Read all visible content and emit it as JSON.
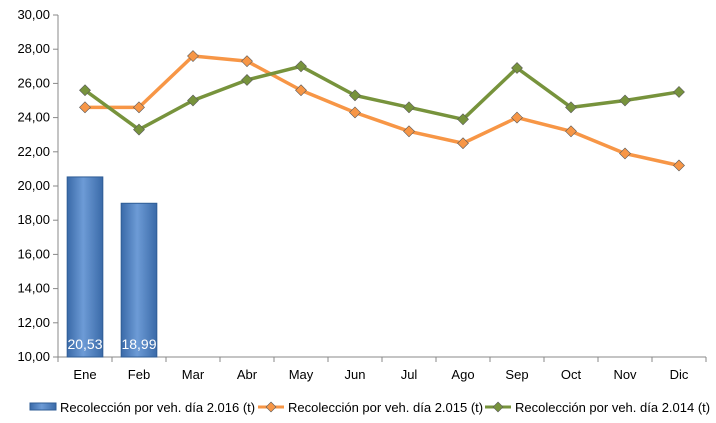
{
  "chart_data": {
    "type": "bar",
    "categories": [
      "Ene",
      "Feb",
      "Mar",
      "Abr",
      "May",
      "Jun",
      "Jul",
      "Ago",
      "Sep",
      "Oct",
      "Nov",
      "Dic"
    ],
    "ylim": [
      10,
      30
    ],
    "yticks": [
      "10,00",
      "12,00",
      "14,00",
      "16,00",
      "18,00",
      "20,00",
      "22,00",
      "24,00",
      "26,00",
      "28,00",
      "30,00"
    ],
    "grid": false,
    "legend_position": "bottom",
    "series": [
      {
        "name": "Recolección por veh. día 2.016 (t)",
        "kind": "bar",
        "color": "#4f81bd",
        "values": [
          20.53,
          18.99,
          null,
          null,
          null,
          null,
          null,
          null,
          null,
          null,
          null,
          null
        ],
        "data_labels": [
          "20,53",
          "18,99"
        ]
      },
      {
        "name": "Recolección por veh. día 2.015 (t)",
        "kind": "line",
        "color": "#f79646",
        "marker": "diamond",
        "values": [
          24.6,
          24.6,
          27.6,
          27.3,
          25.6,
          24.3,
          23.2,
          22.5,
          24.0,
          23.2,
          21.9,
          21.2
        ]
      },
      {
        "name": "Recolección por veh. día 2.014 (t)",
        "kind": "line",
        "color": "#77933c",
        "marker": "diamond",
        "values": [
          25.6,
          23.3,
          25.0,
          26.2,
          27.0,
          25.3,
          24.6,
          23.9,
          26.9,
          24.6,
          25.0,
          25.5
        ]
      }
    ]
  }
}
